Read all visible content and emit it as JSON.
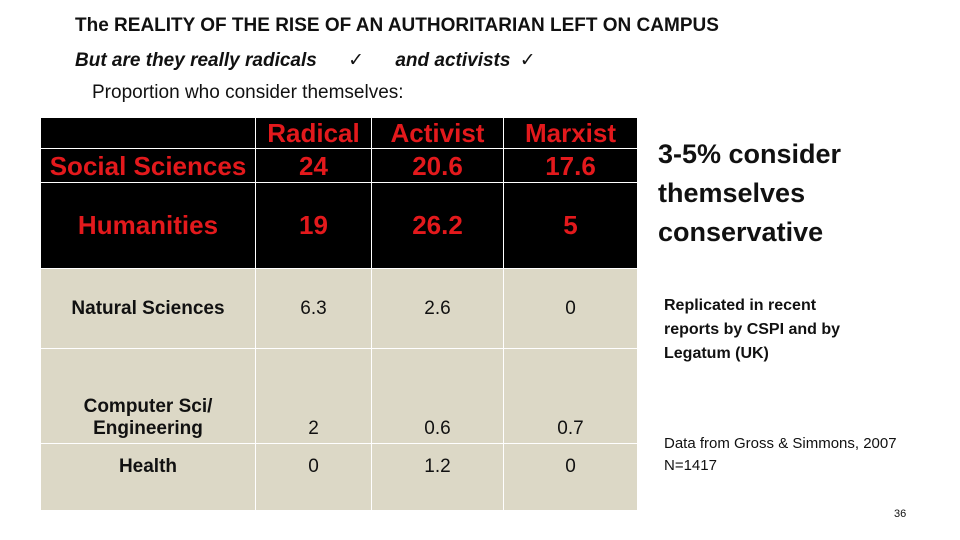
{
  "title": "The REALITY OF THE RISE OF AN AUTHORITARIAN LEFT ON CAMPUS",
  "subtitle": {
    "part1": "But are they really radicals",
    "check1": "✓",
    "part2": "and activists",
    "check2": "✓"
  },
  "proportion_label": "Proportion who consider themselves:",
  "table": {
    "columns": [
      "",
      "Radical",
      "Activist",
      "Marxist"
    ],
    "rows": [
      {
        "field": "Social Sciences",
        "values": [
          "24",
          "20.6",
          "17.6"
        ]
      },
      {
        "field": "Humanities",
        "values": [
          "19",
          "26.2",
          "5"
        ]
      },
      {
        "field": "Natural Sciences",
        "values": [
          "6.3",
          "2.6",
          "0"
        ]
      },
      {
        "field_line1": "Computer Sci/",
        "field_line2": "Engineering",
        "values": [
          "2",
          "0.6",
          "0.7"
        ]
      },
      {
        "field": "Health",
        "values": [
          "0",
          "1.2",
          "0"
        ]
      }
    ],
    "colors": {
      "dark_bg": "#000000",
      "highlight_text": "#e3191c",
      "light_bg": "#dcd8c6"
    }
  },
  "conservative_note": {
    "line1": "3-5% consider",
    "line2": "themselves",
    "line3": "conservative"
  },
  "replicated_note": {
    "line1": "Replicated in recent",
    "line2": "reports by CSPI and by",
    "line3": "Legatum (UK)"
  },
  "source": {
    "line1": "Data from Gross & Simmons, 2007",
    "line2": "N=1417"
  },
  "page_number": "36"
}
